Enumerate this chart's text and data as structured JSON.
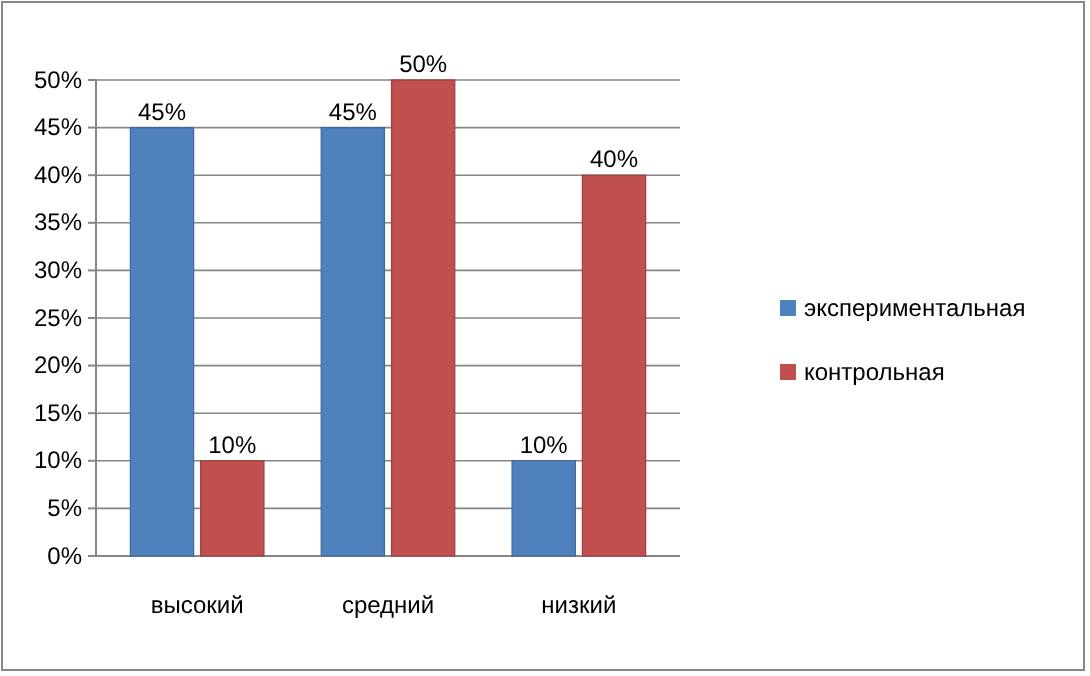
{
  "chart_data": {
    "type": "bar",
    "categories": [
      "высокий",
      "средний",
      "низкий"
    ],
    "series": [
      {
        "name": "экспериментальная",
        "color": "#4f81bd",
        "values": [
          45,
          45,
          10
        ],
        "value_labels": [
          "45%",
          "45%",
          "10%"
        ]
      },
      {
        "name": "контрольная",
        "color": "#c0504d",
        "values": [
          10,
          50,
          40
        ],
        "value_labels": [
          "10%",
          "50%",
          "40%"
        ]
      }
    ],
    "ylim": [
      0,
      50
    ],
    "yticks": [
      {
        "value": 0,
        "label": "0%"
      },
      {
        "value": 5,
        "label": "5%"
      },
      {
        "value": 10,
        "label": "10%"
      },
      {
        "value": 15,
        "label": "15%"
      },
      {
        "value": 20,
        "label": "20%"
      },
      {
        "value": 25,
        "label": "25%"
      },
      {
        "value": 30,
        "label": "30%"
      },
      {
        "value": 35,
        "label": "35%"
      },
      {
        "value": 40,
        "label": "40%"
      },
      {
        "value": 45,
        "label": "45%"
      },
      {
        "value": 50,
        "label": "50%"
      }
    ],
    "grid": "y",
    "legend": "right"
  }
}
